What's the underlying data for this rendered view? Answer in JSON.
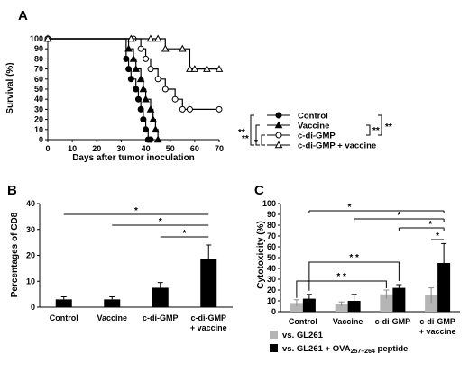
{
  "chart_data": [
    {
      "panel": "A",
      "type": "line",
      "step": true,
      "xlabel": "Days after tumor inoculation",
      "ylabel": "Survival (%)",
      "xlim": [
        0,
        70
      ],
      "ylim": [
        0,
        100
      ],
      "xticks": [
        "0",
        "10",
        "20",
        "30",
        "40",
        "50",
        "60",
        "70"
      ],
      "yticks": [
        "0",
        "10",
        "20",
        "30",
        "40",
        "50",
        "60",
        "70",
        "80",
        "90",
        "100"
      ],
      "series": [
        {
          "name": "Control",
          "marker": "filled-circle",
          "x": [
            0,
            32,
            33,
            34,
            36,
            37,
            38,
            39,
            40,
            41,
            42
          ],
          "y": [
            100,
            80,
            70,
            60,
            50,
            40,
            30,
            20,
            10,
            0,
            0
          ]
        },
        {
          "name": "Vaccine",
          "marker": "filled-triangle",
          "x": [
            0,
            33,
            35,
            36,
            38,
            39,
            40,
            42,
            43,
            44,
            45
          ],
          "y": [
            100,
            90,
            80,
            70,
            60,
            50,
            40,
            30,
            20,
            10,
            0
          ]
        },
        {
          "name": "c-di-GMP",
          "marker": "open-circle",
          "x": [
            0,
            35,
            38,
            40,
            42,
            45,
            48,
            52,
            55,
            58,
            70
          ],
          "y": [
            100,
            100,
            90,
            80,
            70,
            60,
            50,
            40,
            30,
            30,
            30
          ]
        },
        {
          "name": "c-di-GMP + vaccine",
          "marker": "open-triangle",
          "x": [
            0,
            34,
            42,
            45,
            48,
            55,
            58,
            60,
            65,
            70
          ],
          "y": [
            100,
            100,
            100,
            100,
            90,
            90,
            70,
            70,
            70,
            70
          ]
        }
      ],
      "significance": [
        {
          "groups": [
            "Control",
            "c-di-GMP"
          ],
          "label": "**"
        },
        {
          "groups": [
            "Vaccine",
            "c-di-GMP + vaccine"
          ],
          "label": "**"
        },
        {
          "groups": [
            "Control",
            "c-di-GMP + vaccine"
          ],
          "label": "**"
        },
        {
          "groups": [
            "c-di-GMP",
            "c-di-GMP + vaccine"
          ],
          "label": "*"
        },
        {
          "groups": [
            "Vaccine",
            "c-di-GMP"
          ],
          "label": "**"
        }
      ]
    },
    {
      "panel": "B",
      "type": "bar",
      "categories": [
        "Control",
        "Vaccine",
        "c-di-GMP",
        "c-di-GMP\n+ vaccine"
      ],
      "values": [
        3,
        3,
        7.5,
        18.5
      ],
      "errors": [
        1,
        1,
        2,
        5.5
      ],
      "ylabel": "Percentages of CD8",
      "ylim": [
        0,
        40
      ],
      "yticks": [
        "0",
        "10",
        "20",
        "30",
        "40"
      ],
      "significance": [
        {
          "from": "Control",
          "to": "c-di-GMP\n+ vaccine",
          "label": "*"
        },
        {
          "from": "Vaccine",
          "to": "c-di-GMP\n+ vaccine",
          "label": "*"
        },
        {
          "from": "c-di-GMP",
          "to": "c-di-GMP\n+ vaccine",
          "label": "*"
        }
      ]
    },
    {
      "panel": "C",
      "type": "bar",
      "categories": [
        "Control",
        "Vaccine",
        "c-di-GMP",
        "c-di-GMP\n+ vaccine"
      ],
      "series": [
        {
          "name": "vs. GL261",
          "color": "#b5b5b5",
          "values": [
            8,
            7,
            16,
            15
          ],
          "errors": [
            3,
            2,
            4,
            7
          ]
        },
        {
          "name": "vs. GL261 + OVA257–264 peptide",
          "color": "#000000",
          "values": [
            12,
            10,
            22,
            45
          ],
          "errors": [
            4,
            6,
            3,
            18
          ]
        }
      ],
      "ylabel": "Cytotoxicity (%)",
      "ylim": [
        0,
        100
      ],
      "yticks": [
        "0",
        "10",
        "20",
        "30",
        "40",
        "50",
        "60",
        "70",
        "80",
        "90",
        "100"
      ],
      "significance": [
        {
          "label": "*"
        },
        {
          "label": "*"
        },
        {
          "label": "*"
        },
        {
          "label": "*"
        },
        {
          "label": "* *"
        },
        {
          "label": "* *"
        }
      ]
    }
  ],
  "legend_A": [
    "Control",
    "Vaccine",
    "c-di-GMP",
    "c-di-GMP + vaccine"
  ],
  "legend_C": {
    "gl261": "vs. GL261",
    "ova_prefix": "vs. GL261 + OVA",
    "ova_sub": "257–264",
    "ova_suffix": " peptide"
  }
}
